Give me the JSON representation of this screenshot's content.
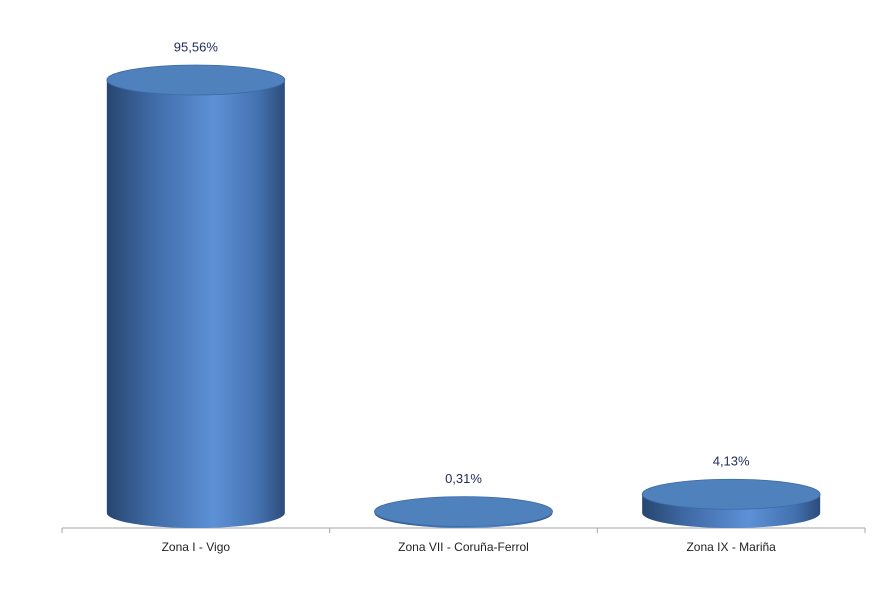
{
  "chart_data": {
    "type": "cylinder-bar",
    "categories": [
      "Zona I - Vigo",
      "Zona VII - Coruña-Ferrol",
      "Zona IX - Mariña"
    ],
    "values": [
      95.56,
      0.31,
      4.13
    ],
    "value_labels": [
      "95,56%",
      "0,31%",
      "4,13%"
    ],
    "color": "#4f81bd"
  }
}
